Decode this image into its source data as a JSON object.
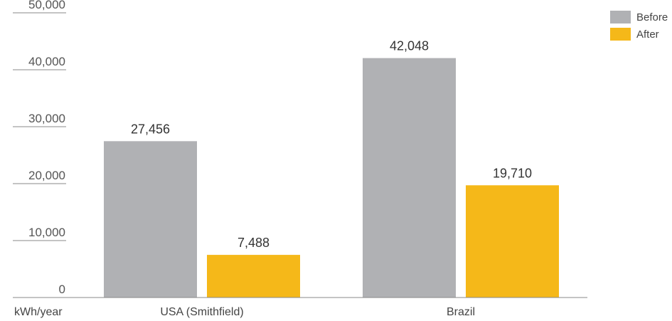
{
  "chart_data": {
    "type": "bar",
    "categories": [
      "USA (Smithfield)",
      "Brazil"
    ],
    "series": [
      {
        "name": "Before",
        "values": [
          27456,
          42048
        ],
        "labels": [
          "27,456",
          "42,048"
        ],
        "color": "#b0b1b4"
      },
      {
        "name": "After",
        "values": [
          7488,
          19710
        ],
        "labels": [
          "7,488",
          "19,710"
        ],
        "color": "#f5b819"
      }
    ],
    "yticks": [
      0,
      10000,
      20000,
      30000,
      40000,
      50000
    ],
    "ytick_labels": [
      "0",
      "10,000",
      "20,000",
      "30,000",
      "40,000",
      "50,000"
    ],
    "ylim": [
      0,
      50000
    ],
    "ylabel": "kWh/year",
    "legend_position": "top-right",
    "grid": false
  }
}
